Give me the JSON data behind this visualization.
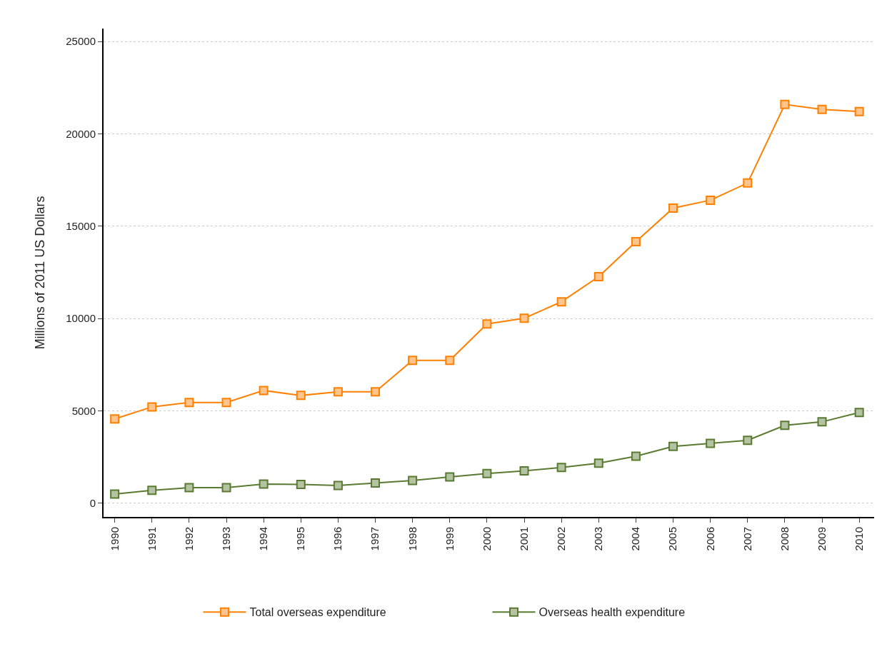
{
  "chart_data": {
    "type": "line",
    "ylabel": "Millions of 2011 US Dollars",
    "categories": [
      "1990",
      "1991",
      "1992",
      "1993",
      "1994",
      "1995",
      "1996",
      "1997",
      "1998",
      "1999",
      "2000",
      "2001",
      "2002",
      "2003",
      "2004",
      "2005",
      "2006",
      "2007",
      "2008",
      "2009",
      "2010"
    ],
    "series": [
      {
        "name": "Total overseas expenditure",
        "color": "#ff8000",
        "values": [
          4570,
          5220,
          5460,
          5460,
          6110,
          5840,
          6040,
          6040,
          7740,
          7740,
          9710,
          10020,
          10910,
          12270,
          14160,
          15980,
          16410,
          17340,
          21590,
          21320,
          21210
        ]
      },
      {
        "name": "Overseas health expenditure",
        "color": "#5a7a32",
        "values": [
          500,
          700,
          850,
          850,
          1040,
          1020,
          970,
          1100,
          1240,
          1430,
          1610,
          1760,
          1940,
          2170,
          2550,
          3080,
          3250,
          3410,
          4220,
          4410,
          4920
        ]
      }
    ],
    "ylim": [
      -735,
      25700
    ],
    "yticks": [
      0,
      5000,
      10000,
      15000,
      20000,
      25000
    ],
    "grid": "y",
    "legend": "bottom",
    "marker": "square",
    "line_style": "solid"
  }
}
